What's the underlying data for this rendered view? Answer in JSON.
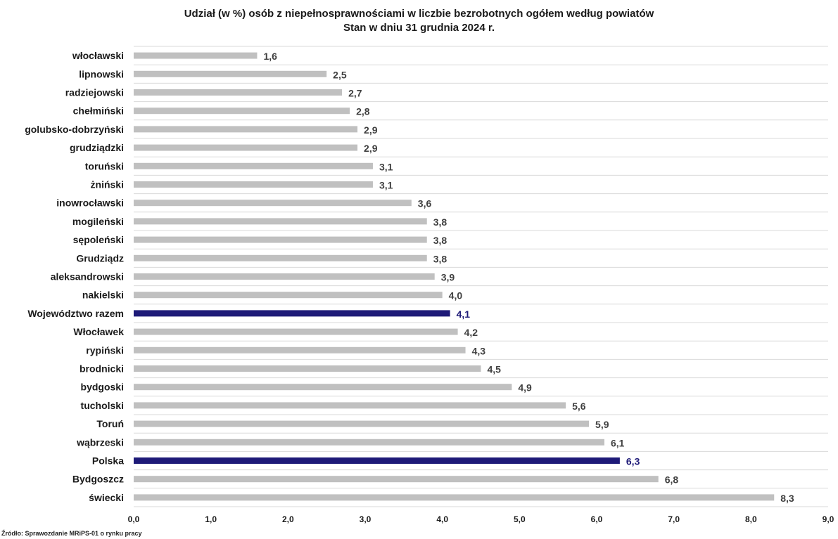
{
  "chart_data": {
    "type": "bar",
    "orientation": "horizontal",
    "title": "Udział (w %) osób z niepełnosprawnościami w liczbie bezrobotnych ogółem według powiatów",
    "subtitle": "Stan w dniu 31 grudnia 2024 r.",
    "categories": [
      "włocławski",
      "lipnowski",
      "radziejowski",
      "chełmiński",
      "golubsko-dobrzyński",
      "grudziądzki",
      "toruński",
      "żniński",
      "inowrocławski",
      "mogileński",
      "sępoleński",
      "Grudziądz",
      "aleksandrowski",
      "nakielski",
      "Województwo razem",
      "Włocławek",
      "rypiński",
      "brodnicki",
      "bydgoski",
      "tucholski",
      "Toruń",
      "wąbrzeski",
      "Polska",
      "Bydgoszcz",
      "świecki"
    ],
    "values": [
      1.6,
      2.5,
      2.7,
      2.8,
      2.9,
      2.9,
      3.1,
      3.1,
      3.6,
      3.8,
      3.8,
      3.8,
      3.9,
      4.0,
      4.1,
      4.2,
      4.3,
      4.5,
      4.9,
      5.6,
      5.9,
      6.1,
      6.3,
      6.8,
      8.3
    ],
    "value_labels": [
      "1,6",
      "2,5",
      "2,7",
      "2,8",
      "2,9",
      "2,9",
      "3,1",
      "3,1",
      "3,6",
      "3,8",
      "3,8",
      "3,8",
      "3,9",
      "4,0",
      "4,1",
      "4,2",
      "4,3",
      "4,5",
      "4,9",
      "5,6",
      "5,9",
      "6,1",
      "6,3",
      "6,8",
      "8,3"
    ],
    "highlighted": [
      "Województwo razem",
      "Polska"
    ],
    "xlim": [
      0,
      9
    ],
    "xticks": [
      "0,0",
      "1,0",
      "2,0",
      "3,0",
      "4,0",
      "5,0",
      "6,0",
      "7,0",
      "8,0",
      "9,0"
    ],
    "xlabel": "",
    "ylabel": "",
    "grid": "horizontal",
    "colors": {
      "bar": "#c0c0c0",
      "highlight_bar": "#1e1a78",
      "highlight_label": "#1e1a78",
      "value_label": "#404040",
      "grid": "#d9d9d9"
    }
  },
  "source": "Źródło: Sprawozdanie MRiPS-01 o rynku pracy"
}
